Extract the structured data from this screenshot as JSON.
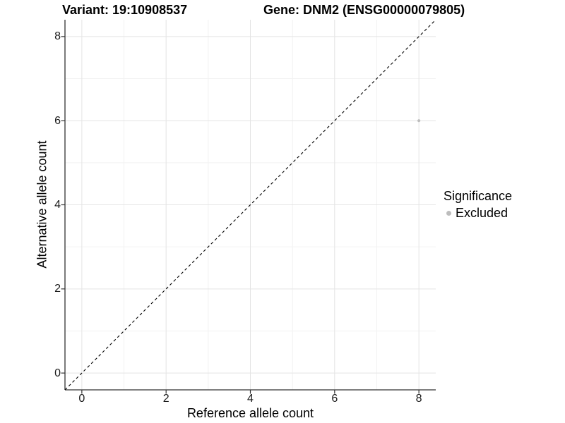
{
  "figure": {
    "background": "#ffffff"
  },
  "chart_data": {
    "type": "scatter",
    "titles": {
      "left": "Variant: 19:10908537",
      "right": "Gene: DNM2 (ENSG00000079805)"
    },
    "xlabel": "Reference allele count",
    "ylabel": "Alternative allele count",
    "xlim": [
      -0.4,
      8.4
    ],
    "ylim": [
      -0.4,
      8.4
    ],
    "xticks": [
      0,
      2,
      4,
      6,
      8
    ],
    "yticks": [
      0,
      2,
      4,
      6,
      8
    ],
    "minor_xticks": [
      1,
      3,
      5,
      7
    ],
    "minor_yticks": [
      1,
      3,
      5,
      7
    ],
    "grid": "major+minor",
    "points": [
      {
        "x": 8,
        "y": 6,
        "series": "Excluded"
      }
    ],
    "identity_line": {
      "from": [
        -0.4,
        -0.4
      ],
      "to": [
        8.4,
        8.4
      ],
      "style": "dashed",
      "color": "#000000"
    },
    "legend": {
      "title": "Significance",
      "position": "right",
      "items": [
        {
          "label": "Excluded",
          "color": "#bdbdbd"
        }
      ]
    },
    "colors": {
      "point": "#bdbdbd",
      "grid_major": "#e4e4e4",
      "grid_minor": "#f2f2f2",
      "axis_line": "#333333",
      "tick_mark": "#333333",
      "tick_text": "#1a1a1a",
      "title_text": "#000000"
    }
  }
}
